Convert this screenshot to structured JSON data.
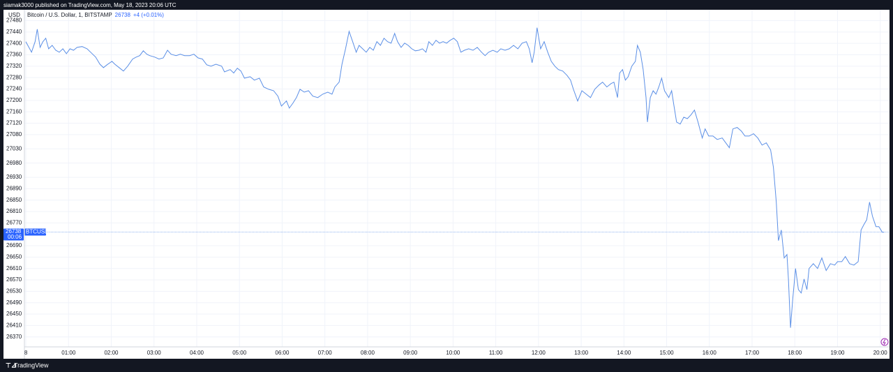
{
  "header": {
    "published": "siamak3000 published on TradingView.com, May 18, 2023 20:06 UTC",
    "brand": "TradingView"
  },
  "chart_data": {
    "type": "line",
    "title": "Bitcoin / U.S. Dollar, 1, BITSTAMP",
    "axis_unit": "USD",
    "last_price": 26738,
    "change": "+4 (+0.01%)",
    "countdown": "00:06",
    "symbol": "BTCUSD",
    "grid": true,
    "xlim": [
      -2,
      1213
    ],
    "ylim": [
      26335,
      27518
    ],
    "xticks": [
      {
        "value": 0,
        "label": "8"
      },
      {
        "value": 60,
        "label": "01:00"
      },
      {
        "value": 120,
        "label": "02:00"
      },
      {
        "value": 180,
        "label": "03:00"
      },
      {
        "value": 240,
        "label": "04:00"
      },
      {
        "value": 300,
        "label": "05:00"
      },
      {
        "value": 360,
        "label": "06:00"
      },
      {
        "value": 420,
        "label": "07:00"
      },
      {
        "value": 480,
        "label": "08:00"
      },
      {
        "value": 540,
        "label": "09:00"
      },
      {
        "value": 600,
        "label": "10:00"
      },
      {
        "value": 660,
        "label": "11:00"
      },
      {
        "value": 720,
        "label": "12:00"
      },
      {
        "value": 780,
        "label": "13:00"
      },
      {
        "value": 840,
        "label": "14:00"
      },
      {
        "value": 900,
        "label": "15:00"
      },
      {
        "value": 960,
        "label": "16:00"
      },
      {
        "value": 1020,
        "label": "17:00"
      },
      {
        "value": 1080,
        "label": "18:00"
      },
      {
        "value": 1140,
        "label": "19:00"
      },
      {
        "value": 1200,
        "label": "20:00"
      }
    ],
    "yticks": [
      27480,
      27440,
      27400,
      27360,
      27320,
      27280,
      27240,
      27200,
      27160,
      27120,
      27080,
      27030,
      26980,
      26930,
      26890,
      26850,
      26810,
      26770,
      26690,
      26650,
      26610,
      26570,
      26530,
      26490,
      26450,
      26410,
      26370
    ],
    "x": [
      0,
      8,
      13,
      16,
      20,
      24,
      28,
      32,
      37,
      42,
      47,
      52,
      57,
      62,
      67,
      72,
      79,
      86,
      91,
      98,
      104,
      109,
      114,
      121,
      125,
      132,
      137,
      143,
      150,
      155,
      160,
      165,
      170,
      174,
      181,
      187,
      193,
      199,
      204,
      211,
      217,
      223,
      230,
      236,
      242,
      248,
      254,
      260,
      267,
      275,
      279,
      287,
      292,
      297,
      302,
      307,
      315,
      321,
      328,
      334,
      341,
      348,
      354,
      359,
      366,
      370,
      375,
      380,
      385,
      391,
      397,
      403,
      410,
      417,
      424,
      430,
      434,
      440,
      444,
      449,
      454,
      459,
      464,
      468,
      473,
      478,
      483,
      488,
      493,
      498,
      503,
      508,
      513,
      518,
      522,
      527,
      532,
      537,
      542,
      547,
      552,
      557,
      562,
      566,
      571,
      576,
      581,
      586,
      591,
      596,
      601,
      606,
      611,
      616,
      622,
      628,
      634,
      640,
      645,
      650,
      656,
      662,
      667,
      673,
      679,
      685,
      691,
      697,
      703,
      707,
      711,
      714,
      718,
      723,
      728,
      733,
      738,
      743,
      748,
      754,
      760,
      765,
      769,
      775,
      781,
      787,
      793,
      799,
      805,
      810,
      816,
      822,
      826,
      831,
      834,
      838,
      842,
      846,
      851,
      856,
      859,
      863,
      867,
      871,
      873,
      877,
      881,
      885,
      889,
      893,
      897,
      903,
      907,
      910,
      914,
      919,
      924,
      929,
      934,
      939,
      944,
      950,
      954,
      959,
      965,
      971,
      978,
      983,
      988,
      993,
      999,
      1005,
      1010,
      1016,
      1022,
      1028,
      1034,
      1040,
      1046,
      1050,
      1054,
      1057,
      1061,
      1065,
      1069,
      1071,
      1074,
      1077,
      1081,
      1085,
      1089,
      1093,
      1097,
      1100,
      1106,
      1112,
      1118,
      1124,
      1130,
      1136,
      1140,
      1146,
      1151,
      1157,
      1163,
      1169,
      1173,
      1177,
      1181,
      1185,
      1189,
      1194,
      1198,
      1203,
      1206
    ],
    "series": [
      {
        "name": "BTCUSD",
        "color": "#5b8fe6",
        "values": [
          27406,
          27369,
          27406,
          27450,
          27386,
          27406,
          27418,
          27381,
          27393,
          27376,
          27369,
          27381,
          27364,
          27381,
          27376,
          27386,
          27389,
          27381,
          27369,
          27352,
          27327,
          27315,
          27325,
          27337,
          27327,
          27313,
          27303,
          27320,
          27345,
          27352,
          27357,
          27374,
          27362,
          27357,
          27352,
          27345,
          27349,
          27376,
          27362,
          27357,
          27362,
          27357,
          27357,
          27362,
          27349,
          27345,
          27325,
          27320,
          27327,
          27320,
          27300,
          27308,
          27296,
          27313,
          27303,
          27278,
          27283,
          27271,
          27278,
          27247,
          27239,
          27234,
          27215,
          27180,
          27198,
          27173,
          27190,
          27210,
          27239,
          27229,
          27234,
          27215,
          27210,
          27222,
          27229,
          27222,
          27247,
          27264,
          27327,
          27381,
          27442,
          27406,
          27369,
          27393,
          27381,
          27369,
          27386,
          27376,
          27406,
          27393,
          27418,
          27406,
          27401,
          27435,
          27406,
          27386,
          27401,
          27393,
          27381,
          27374,
          27376,
          27381,
          27369,
          27406,
          27393,
          27411,
          27401,
          27406,
          27401,
          27411,
          27418,
          27406,
          27369,
          27376,
          27381,
          27376,
          27386,
          27369,
          27357,
          27369,
          27376,
          27369,
          27381,
          27376,
          27381,
          27393,
          27381,
          27401,
          27406,
          27381,
          27332,
          27369,
          27455,
          27381,
          27406,
          27369,
          27337,
          27320,
          27308,
          27303,
          27288,
          27271,
          27239,
          27198,
          27234,
          27222,
          27210,
          27239,
          27254,
          27264,
          27247,
          27259,
          27264,
          27210,
          27296,
          27308,
          27271,
          27283,
          27320,
          27337,
          27393,
          27369,
          27308,
          27210,
          27124,
          27210,
          27234,
          27222,
          27247,
          27278,
          27234,
          27210,
          27234,
          27185,
          27124,
          27117,
          27141,
          27136,
          27149,
          27166,
          27124,
          27068,
          27100,
          27075,
          27075,
          27063,
          27068,
          27051,
          27034,
          27100,
          27105,
          27092,
          27075,
          27075,
          27083,
          27068,
          27043,
          27051,
          27026,
          26965,
          26843,
          26708,
          26745,
          26647,
          26659,
          26573,
          26402,
          26500,
          26610,
          26536,
          26524,
          26573,
          26536,
          26610,
          26627,
          26610,
          26647,
          26603,
          26627,
          26622,
          26634,
          26634,
          26652,
          26627,
          26622,
          26634,
          26745,
          26764,
          26781,
          26843,
          26794,
          26757,
          26757,
          26737,
          26738
        ]
      }
    ]
  }
}
